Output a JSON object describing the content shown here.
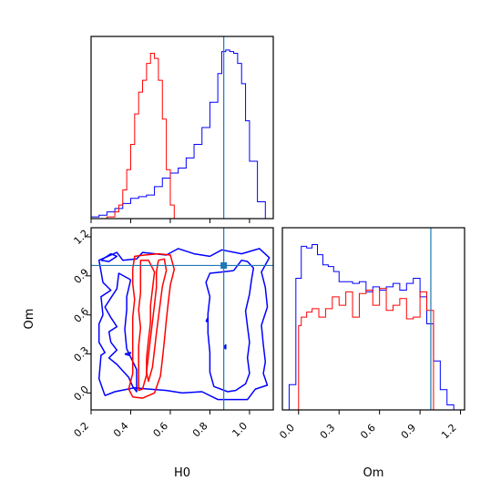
{
  "chart_data": {
    "type": "corner",
    "parameters": [
      "H0",
      "Om"
    ],
    "truth": {
      "H0": 0.87,
      "Om": 0.98
    },
    "colors": {
      "blue": "#0000ff",
      "red": "#ff0000",
      "truth": "#1f77b4"
    },
    "panels": [
      {
        "id": "h0-marginal",
        "type": "histogram",
        "xlim": [
          0.2,
          1.12
        ],
        "ylim": [
          0,
          1.08
        ],
        "x_ticks_labels_shown": false,
        "x_ticks": [
          0.2,
          0.4,
          0.6,
          0.8,
          1.0
        ],
        "series": [
          {
            "color": "#0000ff",
            "bin_edges": [
              0.2,
              0.24,
              0.28,
              0.32,
              0.36,
              0.4,
              0.44,
              0.48,
              0.52,
              0.56,
              0.6,
              0.64,
              0.68,
              0.72,
              0.76,
              0.8,
              0.84,
              0.86,
              0.88,
              0.9,
              0.92,
              0.94,
              0.96,
              0.98,
              1.0,
              1.04,
              1.08,
              1.1
            ],
            "counts": [
              0.01,
              0.02,
              0.04,
              0.06,
              0.09,
              0.12,
              0.13,
              0.14,
              0.19,
              0.24,
              0.27,
              0.3,
              0.36,
              0.44,
              0.54,
              0.69,
              0.86,
              0.99,
              1.0,
              0.99,
              0.98,
              0.92,
              0.8,
              0.58,
              0.34,
              0.1,
              0.0
            ]
          },
          {
            "color": "#ff0000",
            "bin_edges": [
              0.28,
              0.32,
              0.34,
              0.36,
              0.38,
              0.4,
              0.42,
              0.44,
              0.46,
              0.48,
              0.5,
              0.52,
              0.54,
              0.56,
              0.58,
              0.6,
              0.62
            ],
            "counts": [
              0.01,
              0.04,
              0.08,
              0.17,
              0.29,
              0.44,
              0.62,
              0.75,
              0.82,
              0.92,
              0.98,
              0.95,
              0.82,
              0.59,
              0.29,
              0.08
            ]
          }
        ]
      },
      {
        "id": "om-marginal",
        "type": "histogram",
        "xlim": [
          -0.12,
          1.23
        ],
        "ylim": [
          0,
          1.08
        ],
        "x_ticks": [
          0.0,
          0.3,
          0.6,
          0.9,
          1.2
        ],
        "x_tick_labels": [
          "0.0",
          "0.3",
          "0.6",
          "0.9",
          "1.2"
        ],
        "series": [
          {
            "color": "#0000ff",
            "bin_edges": [
              -0.07,
              -0.02,
              0.02,
              0.06,
              0.1,
              0.14,
              0.18,
              0.22,
              0.26,
              0.3,
              0.35,
              0.4,
              0.45,
              0.5,
              0.55,
              0.6,
              0.65,
              0.7,
              0.75,
              0.8,
              0.85,
              0.9,
              0.95,
              1.0,
              1.05,
              1.1,
              1.15
            ],
            "counts": [
              0.15,
              0.78,
              0.97,
              0.96,
              0.98,
              0.92,
              0.86,
              0.85,
              0.82,
              0.76,
              0.76,
              0.75,
              0.76,
              0.7,
              0.73,
              0.71,
              0.73,
              0.75,
              0.71,
              0.75,
              0.78,
              0.67,
              0.51,
              0.29,
              0.12,
              0.03
            ]
          },
          {
            "color": "#ff0000",
            "bin_edges": [
              0.0,
              0.02,
              0.06,
              0.1,
              0.15,
              0.2,
              0.25,
              0.3,
              0.35,
              0.4,
              0.45,
              0.5,
              0.55,
              0.6,
              0.65,
              0.7,
              0.75,
              0.8,
              0.85,
              0.9,
              0.95,
              1.0,
              1.04
            ],
            "counts": [
              0.5,
              0.55,
              0.58,
              0.6,
              0.55,
              0.6,
              0.67,
              0.62,
              0.7,
              0.55,
              0.69,
              0.71,
              0.62,
              0.72,
              0.59,
              0.62,
              0.66,
              0.54,
              0.55,
              0.7,
              0.59,
              0.0
            ]
          }
        ]
      },
      {
        "id": "joint",
        "type": "contour",
        "xlabel": "H0",
        "ylabel": "Om",
        "xlim": [
          0.2,
          1.12
        ],
        "ylim": [
          -0.13,
          1.27
        ],
        "x_ticks": [
          0.2,
          0.4,
          0.6,
          0.8,
          1.0
        ],
        "x_tick_labels": [
          "0.2",
          "0.4",
          "0.6",
          "0.8",
          "1.0"
        ],
        "y_ticks": [
          0.0,
          0.3,
          0.6,
          0.9,
          1.2
        ],
        "y_tick_labels": [
          "0.0",
          "0.3",
          "0.6",
          "0.9",
          "1.2"
        ],
        "contours": [
          {
            "color": "#0000ff",
            "level": "outer",
            "points": [
              [
                0.27,
                -0.02
              ],
              [
                0.24,
                0.11
              ],
              [
                0.25,
                0.29
              ],
              [
                0.27,
                0.31
              ],
              [
                0.24,
                0.39
              ],
              [
                0.24,
                0.53
              ],
              [
                0.26,
                0.6
              ],
              [
                0.25,
                0.74
              ],
              [
                0.3,
                0.79
              ],
              [
                0.26,
                0.85
              ],
              [
                0.24,
                1.02
              ],
              [
                0.33,
                1.08
              ],
              [
                0.36,
                1.02
              ],
              [
                0.43,
                1.03
              ],
              [
                0.46,
                1.08
              ],
              [
                0.58,
                1.06
              ],
              [
                0.64,
                1.11
              ],
              [
                0.72,
                1.07
              ],
              [
                0.8,
                1.05
              ],
              [
                0.86,
                1.1
              ],
              [
                0.96,
                1.07
              ],
              [
                1.05,
                1.11
              ],
              [
                1.1,
                1.04
              ],
              [
                1.06,
                0.93
              ],
              [
                1.08,
                0.81
              ],
              [
                1.09,
                0.66
              ],
              [
                1.06,
                0.52
              ],
              [
                1.07,
                0.37
              ],
              [
                1.08,
                0.24
              ],
              [
                1.07,
                0.15
              ],
              [
                1.09,
                0.06
              ],
              [
                1.03,
                0.03
              ],
              [
                0.99,
                -0.05
              ],
              [
                0.91,
                -0.05
              ],
              [
                0.84,
                -0.05
              ],
              [
                0.76,
                0.01
              ],
              [
                0.66,
                0.0
              ],
              [
                0.58,
                0.02
              ],
              [
                0.49,
                0.03
              ],
              [
                0.42,
                0.04
              ],
              [
                0.32,
                0.01
              ],
              [
                0.27,
                -0.02
              ]
            ]
          },
          {
            "color": "#0000ff",
            "level": "inner-left",
            "points": [
              [
                0.4,
                0.87
              ],
              [
                0.34,
                0.92
              ],
              [
                0.33,
                0.8
              ],
              [
                0.3,
                0.73
              ],
              [
                0.27,
                0.66
              ],
              [
                0.3,
                0.58
              ],
              [
                0.33,
                0.51
              ],
              [
                0.29,
                0.47
              ],
              [
                0.3,
                0.39
              ],
              [
                0.33,
                0.33
              ],
              [
                0.29,
                0.27
              ],
              [
                0.33,
                0.22
              ],
              [
                0.36,
                0.17
              ],
              [
                0.39,
                0.12
              ],
              [
                0.41,
                0.05
              ],
              [
                0.43,
                0.01
              ],
              [
                0.43,
                0.18
              ],
              [
                0.38,
                0.34
              ],
              [
                0.37,
                0.49
              ],
              [
                0.38,
                0.64
              ],
              [
                0.38,
                0.74
              ],
              [
                0.4,
                0.87
              ]
            ]
          },
          {
            "color": "#0000ff",
            "level": "inner-right",
            "points": [
              [
                0.92,
                0.94
              ],
              [
                0.96,
                1.02
              ],
              [
                0.99,
                1.01
              ],
              [
                1.02,
                0.96
              ],
              [
                1.01,
                0.87
              ],
              [
                1.0,
                0.76
              ],
              [
                0.98,
                0.63
              ],
              [
                0.99,
                0.51
              ],
              [
                1.0,
                0.39
              ],
              [
                0.99,
                0.27
              ],
              [
                1.0,
                0.15
              ],
              [
                0.98,
                0.07
              ],
              [
                0.93,
                0.02
              ],
              [
                0.89,
                0.01
              ],
              [
                0.82,
                0.05
              ],
              [
                0.8,
                0.16
              ],
              [
                0.8,
                0.31
              ],
              [
                0.79,
                0.46
              ],
              [
                0.79,
                0.61
              ],
              [
                0.8,
                0.74
              ],
              [
                0.78,
                0.85
              ],
              [
                0.8,
                0.92
              ],
              [
                0.86,
                0.93
              ],
              [
                0.92,
                0.94
              ]
            ]
          },
          {
            "color": "#0000ff",
            "level": "blob-1",
            "points": [
              [
                0.37,
                0.3
              ],
              [
                0.4,
                0.31
              ],
              [
                0.39,
                0.29
              ],
              [
                0.37,
                0.3
              ]
            ]
          },
          {
            "color": "#0000ff",
            "level": "blob-2",
            "points": [
              [
                0.25,
                1.02
              ],
              [
                0.3,
                1.07
              ],
              [
                0.33,
                1.05
              ],
              [
                0.29,
                1.01
              ],
              [
                0.25,
                1.02
              ]
            ]
          },
          {
            "color": "#0000ff",
            "level": "blob-3",
            "points": [
              [
                0.78,
                0.55
              ],
              [
                0.79,
                0.58
              ],
              [
                0.79,
                0.55
              ],
              [
                0.78,
                0.55
              ]
            ]
          },
          {
            "color": "#0000ff",
            "level": "blob-4",
            "points": [
              [
                0.87,
                0.35
              ],
              [
                0.88,
                0.37
              ],
              [
                0.88,
                0.34
              ],
              [
                0.87,
                0.35
              ]
            ]
          },
          {
            "color": "#ff0000",
            "level": "outer",
            "points": [
              [
                0.41,
                0.95
              ],
              [
                0.42,
                1.05
              ],
              [
                0.47,
                1.06
              ],
              [
                0.54,
                1.07
              ],
              [
                0.6,
                1.06
              ],
              [
                0.62,
                0.95
              ],
              [
                0.6,
                0.83
              ],
              [
                0.59,
                0.7
              ],
              [
                0.58,
                0.56
              ],
              [
                0.57,
                0.4
              ],
              [
                0.56,
                0.26
              ],
              [
                0.55,
                0.13
              ],
              [
                0.52,
                0.0
              ],
              [
                0.46,
                -0.04
              ],
              [
                0.41,
                -0.03
              ],
              [
                0.39,
                0.03
              ],
              [
                0.41,
                0.15
              ],
              [
                0.41,
                0.29
              ],
              [
                0.41,
                0.43
              ],
              [
                0.41,
                0.58
              ],
              [
                0.42,
                0.72
              ],
              [
                0.41,
                0.84
              ],
              [
                0.41,
                0.95
              ]
            ]
          },
          {
            "color": "#ff0000",
            "level": "inner",
            "points": [
              [
                0.45,
                0.9
              ],
              [
                0.45,
                1.02
              ],
              [
                0.49,
                1.02
              ],
              [
                0.52,
                0.93
              ],
              [
                0.51,
                0.8
              ],
              [
                0.5,
                0.67
              ],
              [
                0.5,
                0.54
              ],
              [
                0.49,
                0.41
              ],
              [
                0.48,
                0.27
              ],
              [
                0.48,
                0.14
              ],
              [
                0.46,
                0.03
              ],
              [
                0.44,
                0.02
              ],
              [
                0.44,
                0.1
              ],
              [
                0.44,
                0.22
              ],
              [
                0.44,
                0.36
              ],
              [
                0.45,
                0.5
              ],
              [
                0.44,
                0.64
              ],
              [
                0.45,
                0.77
              ],
              [
                0.45,
                0.9
              ]
            ]
          },
          {
            "color": "#ff0000",
            "level": "inner-2",
            "points": [
              [
                0.54,
                1.02
              ],
              [
                0.57,
                1.03
              ],
              [
                0.58,
                0.94
              ],
              [
                0.56,
                0.82
              ],
              [
                0.55,
                0.7
              ],
              [
                0.54,
                0.58
              ],
              [
                0.53,
                0.46
              ],
              [
                0.52,
                0.33
              ],
              [
                0.51,
                0.2
              ],
              [
                0.49,
                0.09
              ],
              [
                0.48,
                0.16
              ],
              [
                0.49,
                0.29
              ],
              [
                0.5,
                0.42
              ],
              [
                0.51,
                0.55
              ],
              [
                0.52,
                0.68
              ],
              [
                0.53,
                0.81
              ],
              [
                0.53,
                0.93
              ],
              [
                0.54,
                1.02
              ]
            ]
          }
        ]
      }
    ]
  }
}
